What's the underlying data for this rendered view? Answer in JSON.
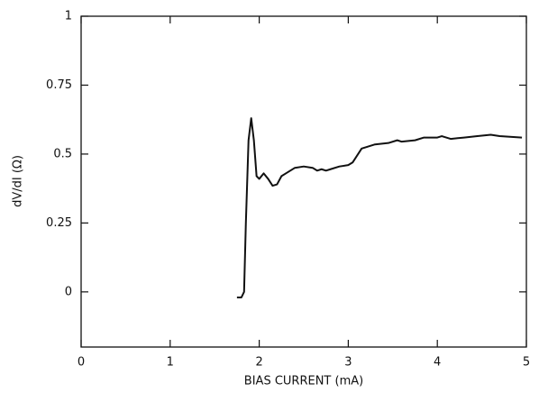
{
  "chart_data": {
    "type": "line",
    "xlabel": "BIAS CURRENT (mA)",
    "ylabel": "dV/dI (Ω)",
    "color": "#111111",
    "x": [
      1.75,
      1.8,
      1.83,
      1.85,
      1.88,
      1.91,
      1.94,
      1.97,
      2.0,
      2.05,
      2.1,
      2.15,
      2.2,
      2.25,
      2.3,
      2.4,
      2.5,
      2.6,
      2.65,
      2.7,
      2.75,
      2.8,
      2.9,
      3.0,
      3.05,
      3.15,
      3.3,
      3.45,
      3.55,
      3.6,
      3.75,
      3.85,
      4.0,
      4.05,
      4.15,
      4.3,
      4.45,
      4.6,
      4.7,
      4.95
    ],
    "values": [
      -0.02,
      -0.02,
      0.0,
      0.25,
      0.55,
      0.63,
      0.55,
      0.42,
      0.41,
      0.43,
      0.41,
      0.385,
      0.39,
      0.42,
      0.43,
      0.45,
      0.455,
      0.45,
      0.44,
      0.445,
      0.44,
      0.445,
      0.455,
      0.46,
      0.47,
      0.52,
      0.535,
      0.54,
      0.55,
      0.545,
      0.55,
      0.56,
      0.56,
      0.565,
      0.555,
      0.56,
      0.565,
      0.57,
      0.565,
      0.56
    ],
    "xlim": [
      0,
      5
    ],
    "xticks": [
      0,
      1,
      2,
      3,
      4,
      5
    ],
    "ylim": [
      -0.2,
      1
    ],
    "yticks": [
      0,
      0.25,
      0.5,
      0.75,
      1
    ]
  }
}
